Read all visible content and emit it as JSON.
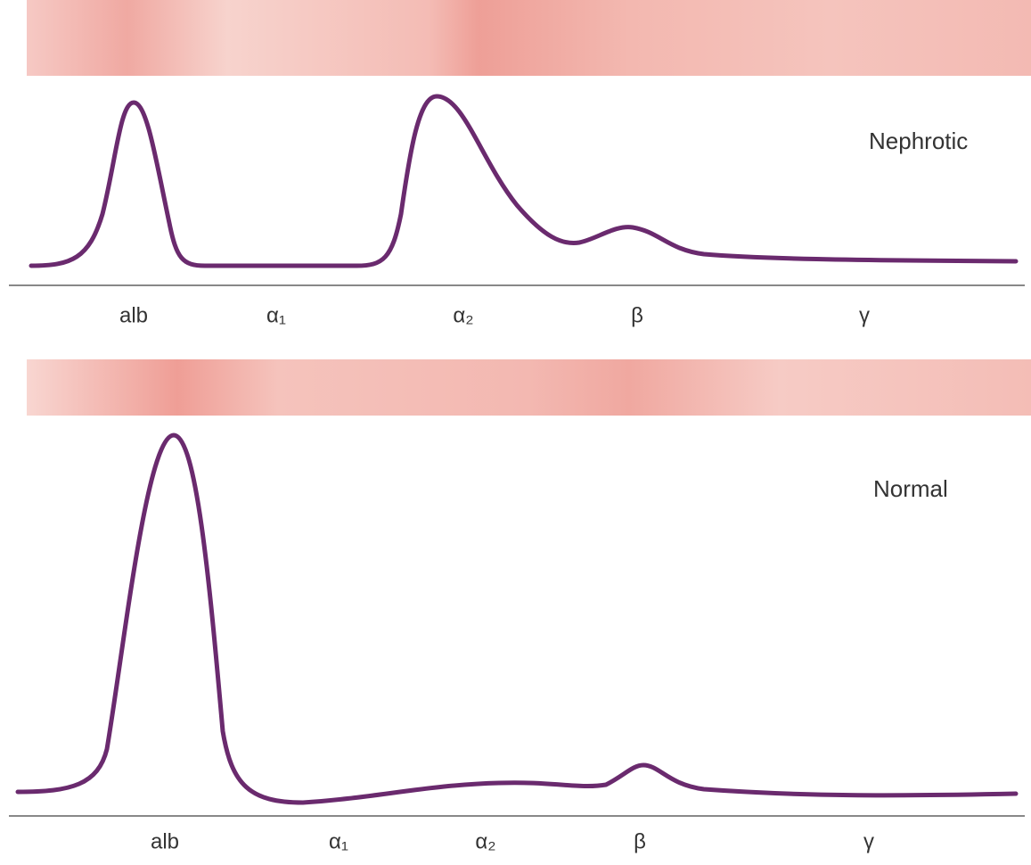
{
  "panels": [
    {
      "label": "Nephrotic",
      "fractions": [
        "alb",
        "α₁",
        "α₂",
        "β",
        "γ"
      ]
    },
    {
      "label": "Normal",
      "fractions": [
        "alb",
        "α₁",
        "α₂",
        "β",
        "γ"
      ]
    }
  ]
}
